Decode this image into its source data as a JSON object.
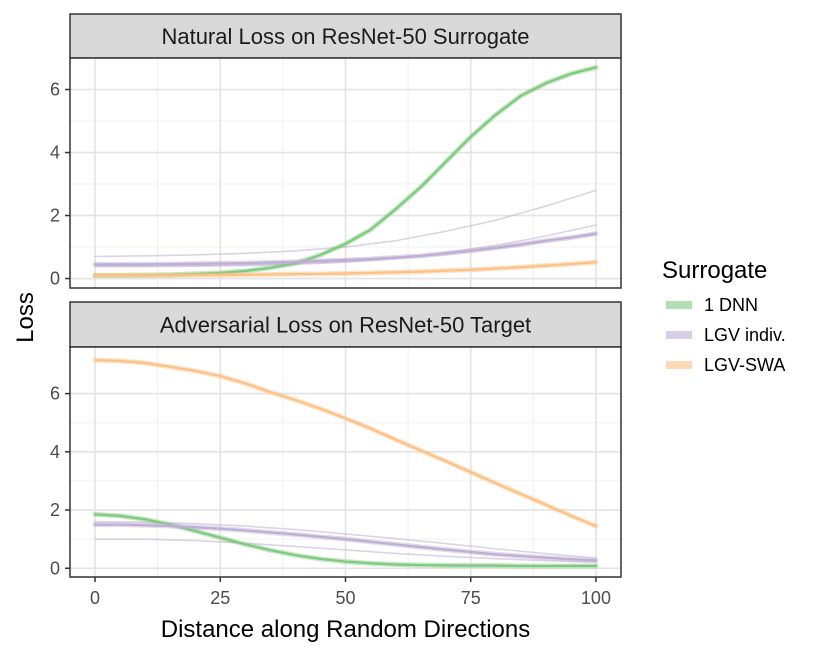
{
  "chart_data": {
    "type": "line",
    "xlabel": "Distance along Random Directions",
    "ylabel": "Loss",
    "xlim": [
      -5,
      105
    ],
    "xticks": [
      0,
      25,
      50,
      75,
      100
    ],
    "legend": {
      "title": "Surrogate",
      "placement": "right",
      "entries": [
        {
          "name": "1 DNN",
          "color": "#7fc97f"
        },
        {
          "name": "LGV indiv.",
          "color": "#beaed4"
        },
        {
          "name": "LGV-SWA",
          "color": "#fdc086"
        }
      ]
    },
    "panels": [
      {
        "title": "Natural Loss on ResNet-50 Surrogate",
        "ylim": [
          -0.3,
          7.0
        ],
        "yticks": [
          0,
          2,
          4,
          6
        ],
        "series": [
          {
            "name": "1 DNN",
            "x": [
              0,
              5,
              10,
              15,
              20,
              25,
              30,
              35,
              40,
              45,
              50,
              55,
              60,
              65,
              70,
              75,
              80,
              85,
              90,
              95,
              100
            ],
            "y": [
              0.1,
              0.1,
              0.11,
              0.12,
              0.15,
              0.18,
              0.24,
              0.34,
              0.48,
              0.75,
              1.1,
              1.55,
              2.2,
              2.9,
              3.7,
              4.5,
              5.2,
              5.8,
              6.2,
              6.5,
              6.7
            ]
          },
          {
            "name": "LGV indiv.",
            "x": [
              0,
              5,
              10,
              15,
              20,
              25,
              30,
              35,
              40,
              45,
              50,
              55,
              60,
              65,
              70,
              75,
              80,
              85,
              90,
              95,
              100
            ],
            "y": [
              0.45,
              0.45,
              0.45,
              0.46,
              0.47,
              0.48,
              0.49,
              0.51,
              0.53,
              0.56,
              0.59,
              0.62,
              0.67,
              0.72,
              0.8,
              0.88,
              0.98,
              1.08,
              1.2,
              1.3,
              1.42
            ]
          },
          {
            "name": "LGV-SWA",
            "x": [
              0,
              5,
              10,
              15,
              20,
              25,
              30,
              35,
              40,
              45,
              50,
              55,
              60,
              65,
              70,
              75,
              80,
              85,
              90,
              95,
              100
            ],
            "y": [
              0.1,
              0.1,
              0.1,
              0.1,
              0.11,
              0.11,
              0.12,
              0.13,
              0.14,
              0.15,
              0.16,
              0.18,
              0.2,
              0.22,
              0.25,
              0.28,
              0.32,
              0.36,
              0.41,
              0.46,
              0.52
            ]
          }
        ],
        "faint_series": [
          {
            "name": "LGV indiv.",
            "x": [
              0,
              10,
              20,
              30,
              40,
              50,
              60,
              70,
              80,
              90,
              100
            ],
            "y": [
              0.7,
              0.72,
              0.75,
              0.8,
              0.88,
              1.0,
              1.2,
              1.5,
              1.85,
              2.3,
              2.8
            ]
          },
          {
            "name": "LGV indiv.",
            "x": [
              0,
              10,
              20,
              30,
              40,
              50,
              60,
              70,
              80,
              90,
              100
            ],
            "y": [
              0.38,
              0.38,
              0.39,
              0.41,
              0.45,
              0.52,
              0.64,
              0.82,
              1.05,
              1.35,
              1.7
            ]
          },
          {
            "name": "LGV indiv.",
            "x": [
              0,
              10,
              20,
              30,
              40,
              50,
              60,
              70,
              80,
              90,
              100
            ],
            "y": [
              0.42,
              0.42,
              0.43,
              0.45,
              0.49,
              0.55,
              0.64,
              0.77,
              0.95,
              1.18,
              1.45
            ]
          }
        ]
      },
      {
        "title": "Adversarial Loss on ResNet-50 Target",
        "ylim": [
          -0.3,
          7.6
        ],
        "yticks": [
          0,
          2,
          4,
          6
        ],
        "series": [
          {
            "name": "1 DNN",
            "x": [
              0,
              5,
              10,
              15,
              20,
              25,
              30,
              35,
              40,
              45,
              50,
              55,
              60,
              65,
              70,
              75,
              80,
              85,
              90,
              95,
              100
            ],
            "y": [
              1.85,
              1.8,
              1.68,
              1.5,
              1.28,
              1.05,
              0.82,
              0.62,
              0.45,
              0.32,
              0.23,
              0.17,
              0.13,
              0.11,
              0.1,
              0.09,
              0.09,
              0.08,
              0.08,
              0.08,
              0.08
            ]
          },
          {
            "name": "LGV indiv.",
            "x": [
              0,
              5,
              10,
              15,
              20,
              25,
              30,
              35,
              40,
              45,
              50,
              55,
              60,
              65,
              70,
              75,
              80,
              85,
              90,
              95,
              100
            ],
            "y": [
              1.5,
              1.5,
              1.48,
              1.45,
              1.41,
              1.36,
              1.3,
              1.23,
              1.16,
              1.08,
              1.0,
              0.91,
              0.82,
              0.73,
              0.64,
              0.56,
              0.48,
              0.42,
              0.36,
              0.31,
              0.27
            ]
          },
          {
            "name": "LGV-SWA",
            "x": [
              0,
              5,
              10,
              15,
              20,
              25,
              30,
              35,
              40,
              45,
              50,
              55,
              60,
              65,
              70,
              75,
              80,
              85,
              90,
              95,
              100
            ],
            "y": [
              7.15,
              7.12,
              7.05,
              6.92,
              6.78,
              6.6,
              6.35,
              6.05,
              5.78,
              5.48,
              5.15,
              4.8,
              4.42,
              4.05,
              3.68,
              3.3,
              2.92,
              2.55,
              2.18,
              1.8,
              1.45
            ]
          }
        ],
        "faint_series": [
          {
            "name": "LGV indiv.",
            "x": [
              0,
              10,
              20,
              30,
              40,
              50,
              60,
              70,
              80,
              90,
              100
            ],
            "y": [
              1.0,
              1.0,
              0.95,
              0.86,
              0.75,
              0.63,
              0.51,
              0.41,
              0.33,
              0.26,
              0.21
            ]
          },
          {
            "name": "LGV indiv.",
            "x": [
              0,
              10,
              20,
              30,
              40,
              50,
              60,
              70,
              80,
              90,
              100
            ],
            "y": [
              1.6,
              1.58,
              1.53,
              1.45,
              1.33,
              1.18,
              1.02,
              0.85,
              0.67,
              0.5,
              0.35
            ]
          }
        ]
      }
    ]
  }
}
